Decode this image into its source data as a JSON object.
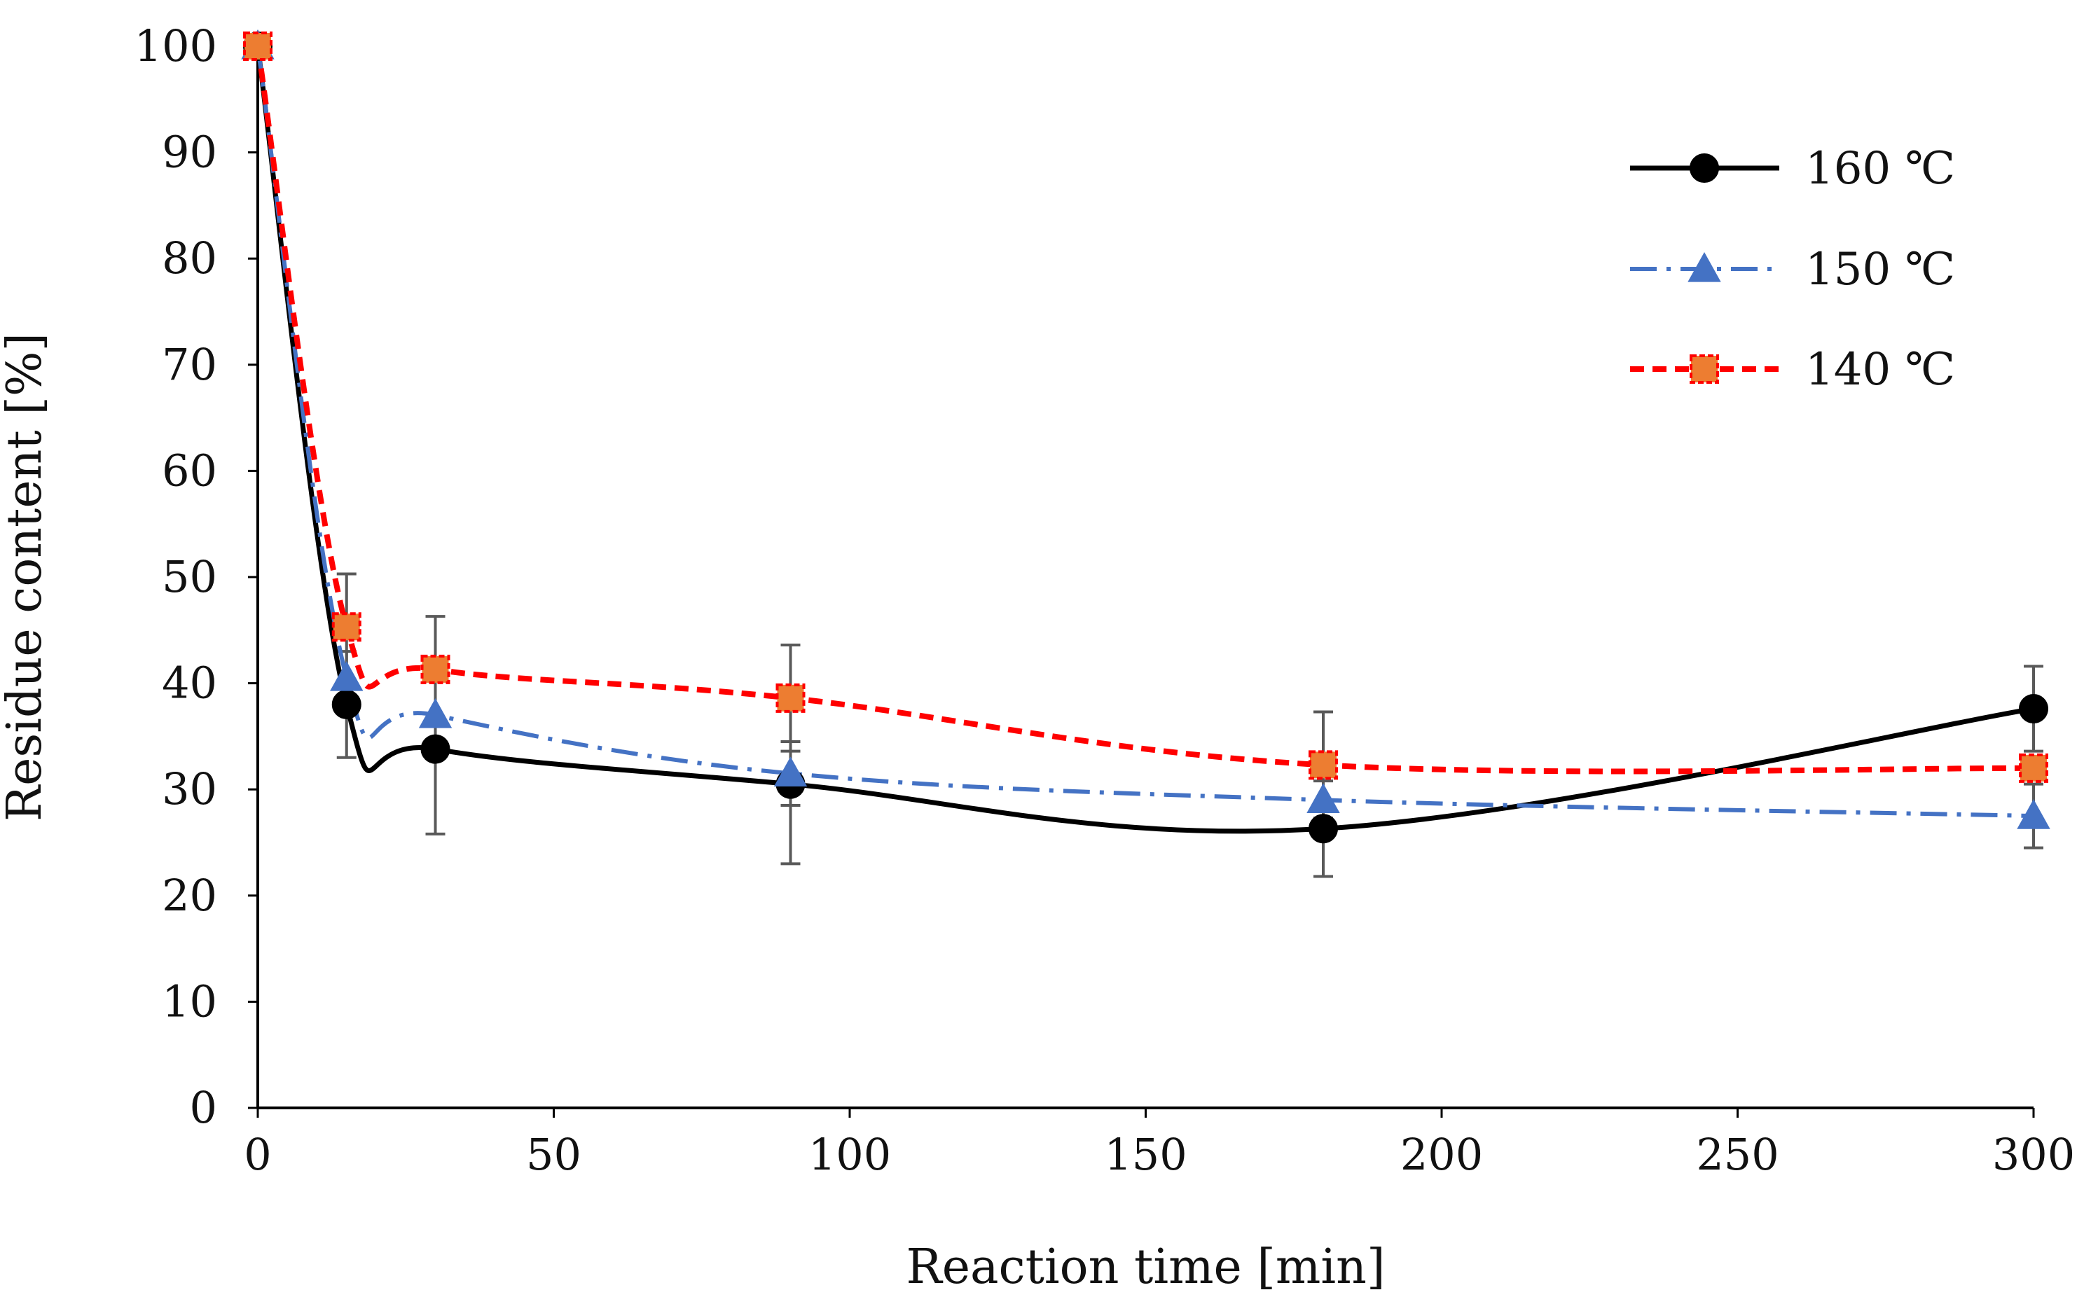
{
  "chart_data": {
    "type": "line",
    "title": "",
    "xlabel": "Reaction time [min]",
    "ylabel": "Residue content [%]",
    "xlim": [
      0,
      300
    ],
    "ylim": [
      0,
      100
    ],
    "xticks": [
      0,
      50,
      100,
      150,
      200,
      250,
      300
    ],
    "yticks": [
      0,
      10,
      20,
      30,
      40,
      50,
      60,
      70,
      80,
      90,
      100
    ],
    "xtick_labels": [
      "0",
      "50",
      "100",
      "150",
      "200",
      "250",
      "300"
    ],
    "ytick_labels": [
      "0",
      "10",
      "20",
      "30",
      "40",
      "50",
      "60",
      "70",
      "80",
      "90",
      "100"
    ],
    "grid": false,
    "legend_position": "top-right",
    "x": [
      0,
      15,
      30,
      90,
      180,
      300
    ],
    "series": [
      {
        "name": "160 ℃",
        "values": [
          100,
          38,
          33.8,
          30.5,
          26.3,
          37.6
        ],
        "errors": [
          0,
          5,
          8,
          7.5,
          4.5,
          4
        ],
        "color": "#000000",
        "marker": "circle",
        "line_style": "solid"
      },
      {
        "name": "150 ℃",
        "values": [
          100,
          40.5,
          37,
          31.5,
          29,
          27.5
        ],
        "errors": [
          0,
          0,
          0,
          3,
          0,
          3
        ],
        "color": "#4472C4",
        "marker": "triangle",
        "line_style": "dash-dot"
      },
      {
        "name": "140 ℃",
        "values": [
          100,
          45.3,
          41.3,
          38.6,
          32.3,
          32
        ],
        "errors": [
          0,
          5,
          5,
          5,
          5,
          0
        ],
        "color": "#FF0000",
        "marker_fill": "#ED7D31",
        "marker": "square",
        "line_style": "dashed"
      }
    ],
    "error_bar_color": "#595959"
  }
}
